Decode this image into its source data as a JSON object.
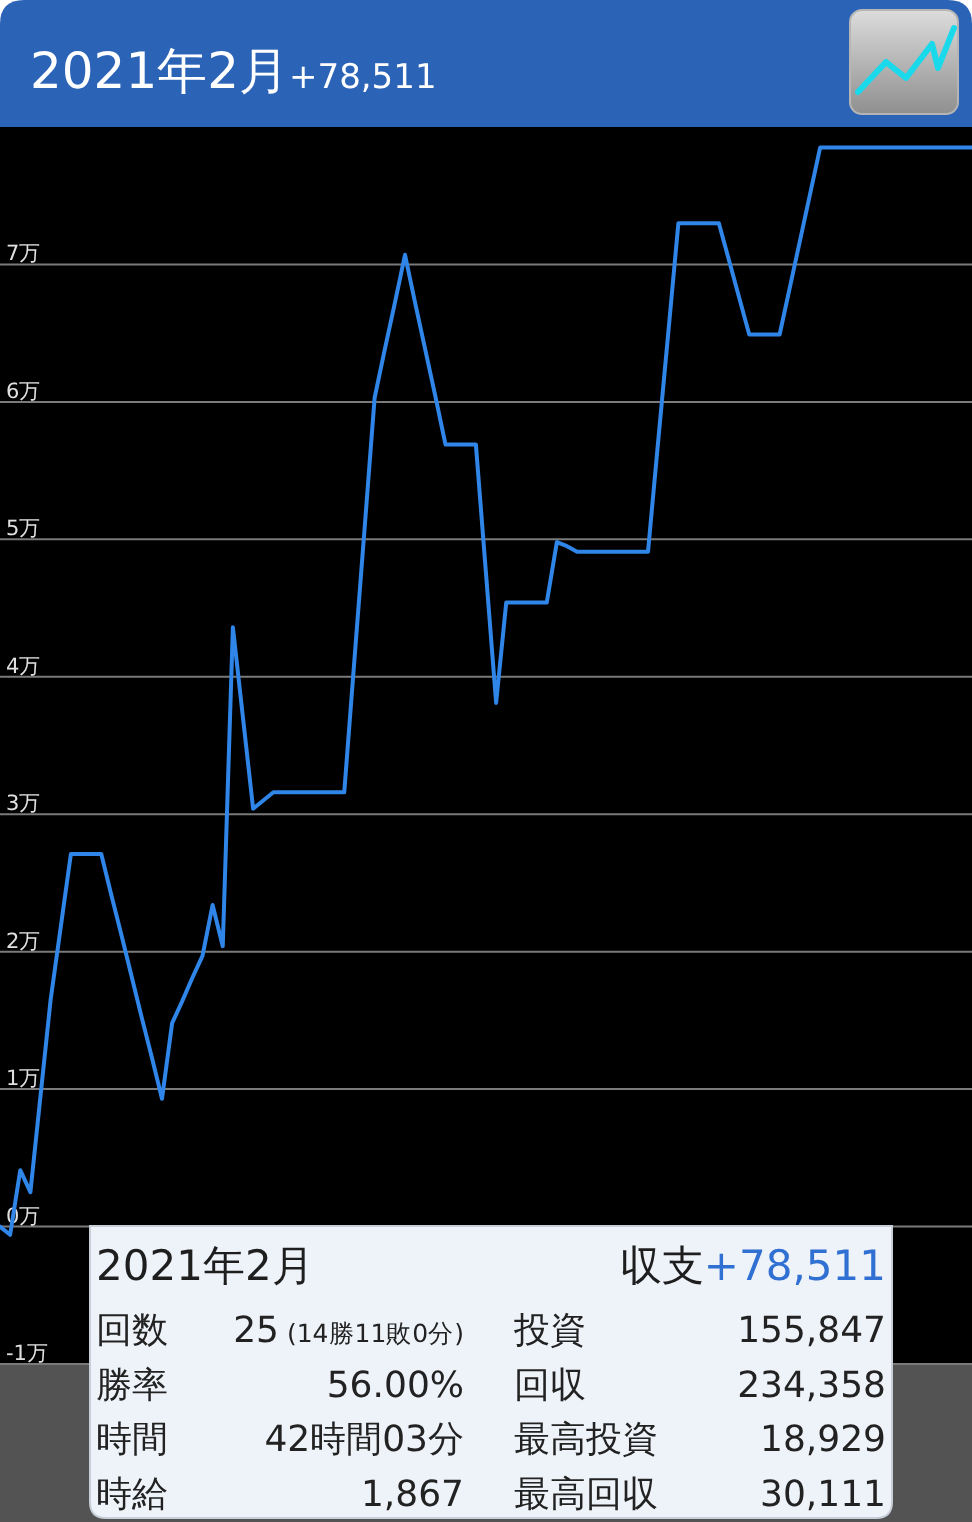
{
  "chart_data": {
    "type": "line",
    "title": "2021年2月",
    "subtitle": "+78,511",
    "categories": [
      null,
      null,
      null,
      null,
      null,
      null,
      null,
      null,
      null,
      null,
      null,
      null,
      null,
      null,
      null,
      null,
      null,
      null,
      null,
      null,
      null,
      null,
      null,
      null,
      null,
      null,
      null,
      null,
      null,
      null,
      null,
      null,
      null,
      null,
      null,
      null,
      null,
      null,
      null,
      null,
      null,
      null,
      null,
      null,
      null,
      null,
      null,
      null,
      null,
      null,
      null,
      null,
      null,
      null,
      null,
      null,
      null,
      null,
      null,
      null,
      null,
      null,
      null,
      null,
      null,
      null,
      null,
      null,
      null,
      null,
      null,
      null,
      null,
      null,
      null,
      null,
      null,
      null,
      null,
      null,
      null,
      null,
      null,
      null,
      null,
      null,
      null,
      null,
      null,
      null,
      null,
      null,
      null,
      null,
      null,
      null,
      null
    ],
    "series": [
      {
        "color": "#2f86e8",
        "values": [
          0,
          -0.06,
          0.41,
          0.25,
          0.95,
          1.65,
          2.18,
          2.71,
          2.71,
          2.71,
          2.71,
          2.41,
          2.12,
          1.82,
          1.52,
          1.23,
          0.93,
          1.48,
          1.64,
          1.81,
          1.97,
          2.34,
          2.04,
          4.36,
          3.7,
          3.04,
          3.1,
          3.16,
          3.16,
          3.16,
          3.16,
          3.16,
          3.16,
          3.16,
          3.16,
          4.12,
          5.07,
          6.03,
          6.38,
          6.72,
          7.07,
          6.72,
          6.38,
          6.04,
          5.69,
          5.69,
          5.69,
          5.69,
          4.75,
          3.81,
          4.54,
          4.54,
          4.54,
          4.54,
          4.54,
          4.98,
          4.95,
          4.91,
          4.91,
          4.91,
          4.91,
          4.91,
          4.91,
          4.91,
          4.91,
          5.71,
          6.5,
          7.3,
          7.3,
          7.3,
          7.3,
          7.3,
          7.03,
          6.76,
          6.49,
          6.49,
          6.49,
          6.49,
          6.83,
          7.17,
          7.51,
          7.85,
          7.85,
          7.85,
          7.85,
          7.85,
          7.85,
          7.85,
          7.85,
          7.85,
          7.85,
          7.85,
          7.85,
          7.85,
          7.85,
          7.85,
          7.85
        ]
      }
    ],
    "ylim": [
      -1,
      8
    ],
    "yticks": [
      {
        "value": -1,
        "label": "-1万"
      },
      {
        "value": 0,
        "label": "0万"
      },
      {
        "value": 1,
        "label": "1万"
      },
      {
        "value": 2,
        "label": "2万"
      },
      {
        "value": 3,
        "label": "3万"
      },
      {
        "value": 4,
        "label": "4万"
      },
      {
        "value": 5,
        "label": "5万"
      },
      {
        "value": 6,
        "label": "6万"
      },
      {
        "value": 7,
        "label": "7万"
      }
    ],
    "grid": "y",
    "tick_labels": "y",
    "annotations": [
      "2021年2月",
      "収支",
      "+78,511",
      "回数",
      "25",
      "(14勝11敗0分)",
      "投資",
      "155,847",
      "勝率",
      "56.00%",
      "回収",
      "234,358",
      "時間",
      "42時間03分",
      "最高投資",
      "18,929",
      "時給",
      "1,867",
      "最高回収",
      "30,111"
    ]
  }
}
